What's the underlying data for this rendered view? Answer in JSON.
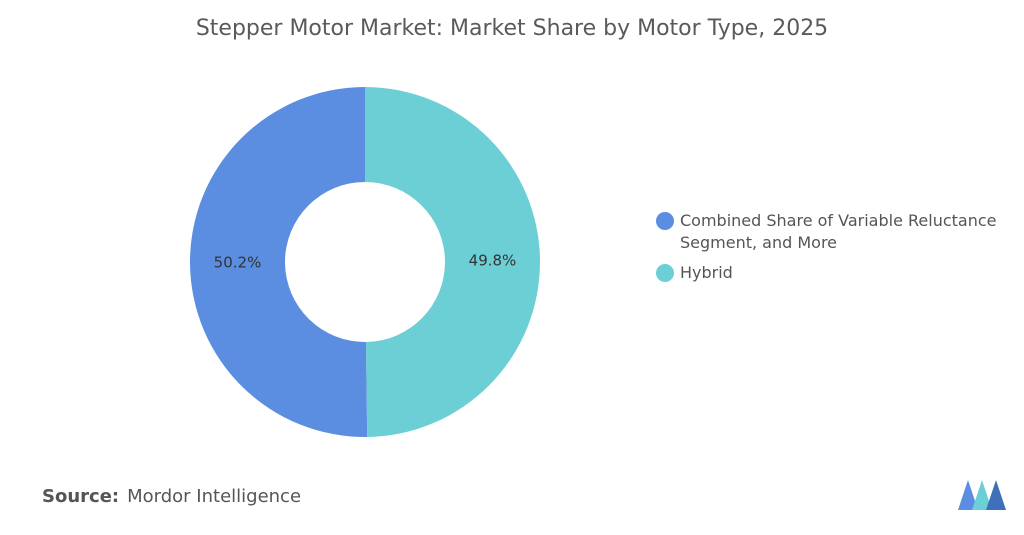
{
  "chart_data": {
    "type": "pie",
    "donut": true,
    "title": "Stepper Motor Market: Market Share by Motor Type, 2025",
    "categories": [
      "Combined Share of Variable Reluctance Segment, and More",
      "Hybrid"
    ],
    "values": [
      50.2,
      49.8
    ],
    "value_labels": [
      "50.2%",
      "49.8%"
    ],
    "colors": [
      "#5b8ee0",
      "#6dcfd6"
    ],
    "legend": "right"
  },
  "footer": {
    "source_label": "Source:",
    "source": "Mordor Intelligence"
  }
}
